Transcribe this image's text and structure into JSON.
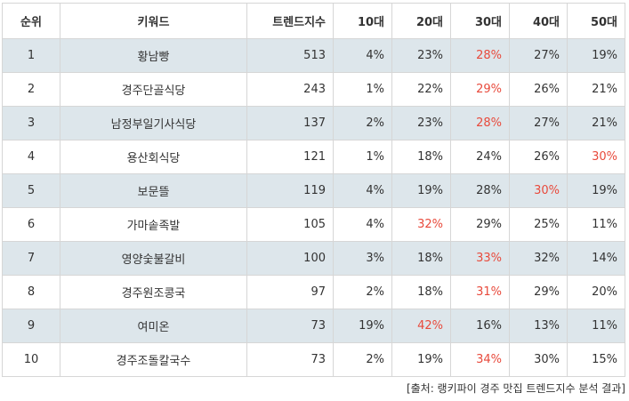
{
  "headers": [
    "순위",
    "키워드",
    "트렌드지수",
    "10대",
    "20대",
    "30대",
    "40대",
    "50대"
  ],
  "highlight_color": "#e84a3c",
  "shade_color": "#dde6eb",
  "rows": [
    {
      "rank": "1",
      "keyword": "황남빵",
      "index": "513",
      "a10": "4%",
      "a20": "23%",
      "a30": "28%",
      "a40": "27%",
      "a50": "19%",
      "highlight": "a30"
    },
    {
      "rank": "2",
      "keyword": "경주단골식당",
      "index": "243",
      "a10": "1%",
      "a20": "22%",
      "a30": "29%",
      "a40": "26%",
      "a50": "21%",
      "highlight": "a30"
    },
    {
      "rank": "3",
      "keyword": "남정부일기사식당",
      "index": "137",
      "a10": "2%",
      "a20": "23%",
      "a30": "28%",
      "a40": "27%",
      "a50": "21%",
      "highlight": "a30"
    },
    {
      "rank": "4",
      "keyword": "용산회식당",
      "index": "121",
      "a10": "1%",
      "a20": "18%",
      "a30": "24%",
      "a40": "26%",
      "a50": "30%",
      "highlight": "a50"
    },
    {
      "rank": "5",
      "keyword": "보문뜰",
      "index": "119",
      "a10": "4%",
      "a20": "19%",
      "a30": "28%",
      "a40": "30%",
      "a50": "19%",
      "highlight": "a40"
    },
    {
      "rank": "6",
      "keyword": "가마솥족발",
      "index": "105",
      "a10": "4%",
      "a20": "32%",
      "a30": "29%",
      "a40": "25%",
      "a50": "11%",
      "highlight": "a20"
    },
    {
      "rank": "7",
      "keyword": "영양숯불갈비",
      "index": "100",
      "a10": "3%",
      "a20": "18%",
      "a30": "33%",
      "a40": "32%",
      "a50": "14%",
      "highlight": "a30"
    },
    {
      "rank": "8",
      "keyword": "경주원조콩국",
      "index": "97",
      "a10": "2%",
      "a20": "18%",
      "a30": "31%",
      "a40": "29%",
      "a50": "20%",
      "highlight": "a30"
    },
    {
      "rank": "9",
      "keyword": "여미온",
      "index": "73",
      "a10": "19%",
      "a20": "42%",
      "a30": "16%",
      "a40": "13%",
      "a50": "11%",
      "highlight": "a20"
    },
    {
      "rank": "10",
      "keyword": "경주조돌칼국수",
      "index": "73",
      "a10": "2%",
      "a20": "19%",
      "a30": "34%",
      "a40": "30%",
      "a50": "15%",
      "highlight": "a30"
    }
  ],
  "source": "[출처: 랭키파이 경주 맛집 트렌드지수 분석 결과]"
}
